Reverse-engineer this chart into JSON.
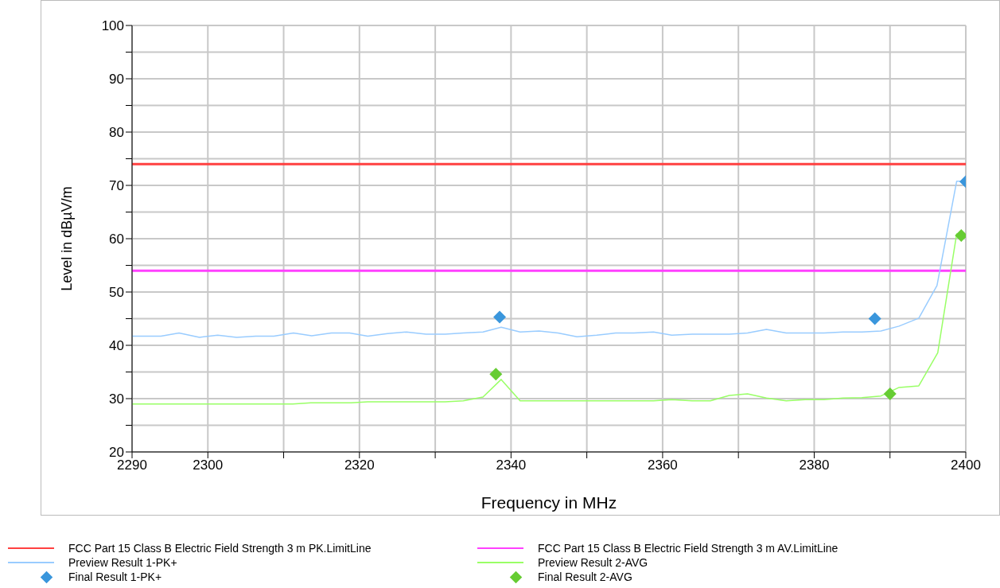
{
  "chart_data": {
    "type": "line",
    "xlabel": "Frequency in MHz",
    "ylabel": "Level in dBµV/m",
    "xlim": [
      2290,
      2400
    ],
    "ylim": [
      20,
      100
    ],
    "xticks": [
      2290,
      2300,
      {
        "value": 2310,
        "label": null
      },
      2320,
      {
        "value": 2330,
        "label": null
      },
      2340,
      {
        "value": 2350,
        "label": null
      },
      2360,
      {
        "value": 2370,
        "label": null
      },
      2380,
      {
        "value": 2390,
        "label": null
      },
      2400
    ],
    "yticks": [
      20,
      {
        "value": 25,
        "label": null
      },
      30,
      {
        "value": 35,
        "label": null
      },
      40,
      {
        "value": 45,
        "label": null
      },
      50,
      {
        "value": 55,
        "label": null
      },
      60,
      {
        "value": 65,
        "label": null
      },
      70,
      {
        "value": 75,
        "label": null
      },
      80,
      {
        "value": 85,
        "label": null
      },
      90,
      {
        "value": 95,
        "label": null
      },
      100
    ],
    "grid": true,
    "legend": "bottom",
    "ref_lines": [
      {
        "axis": "y",
        "value": 74,
        "label": "FCC Part 15 Class B Electric Field Strength 3 m PK.LimitLine",
        "color": "#ff4040"
      },
      {
        "axis": "y",
        "value": 54,
        "label": "FCC Part 15 Class B Electric Field Strength 3 m AV.LimitLine",
        "color": "#ff40ff"
      }
    ],
    "series": [
      {
        "name": "Preview Result 1-PK+",
        "marker": "none",
        "color": "#99ccff",
        "x": [
          2290,
          2293.8,
          2296.2,
          2298.9,
          2301.3,
          2303.8,
          2306.3,
          2308.7,
          2311.3,
          2313.7,
          2316.3,
          2318.7,
          2321.1,
          2323.7,
          2326.2,
          2328.8,
          2331.3,
          2333.7,
          2336.3,
          2338.7,
          2341.2,
          2343.7,
          2346.2,
          2348.7,
          2351.3,
          2353.8,
          2356.2,
          2358.8,
          2361.2,
          2363.9,
          2366.3,
          2368.8,
          2371.2,
          2373.7,
          2376.3,
          2378.8,
          2381.3,
          2383.8,
          2386.3,
          2388.8,
          2391.2,
          2393.8,
          2396.2,
          2398.8,
          2399.5
        ],
        "values": [
          41.7,
          41.7,
          42.3,
          41.5,
          41.9,
          41.5,
          41.7,
          41.7,
          42.3,
          41.8,
          42.3,
          42.3,
          41.7,
          42.2,
          42.5,
          42.1,
          42.1,
          42.3,
          42.5,
          43.4,
          42.5,
          42.7,
          42.3,
          41.6,
          41.9,
          42.3,
          42.3,
          42.5,
          41.9,
          42.1,
          42.1,
          42.1,
          42.3,
          43.0,
          42.3,
          42.3,
          42.3,
          42.5,
          42.5,
          42.7,
          43.6,
          45.1,
          51.2,
          70.8,
          70.8
        ]
      },
      {
        "name": "Preview Result 2-AVG",
        "marker": "none",
        "color": "#99ff66",
        "x": [
          2290,
          2311.2,
          2313.6,
          2318.9,
          2321.1,
          2331.3,
          2333.7,
          2336.3,
          2338.7,
          2341.2,
          2358.8,
          2361.2,
          2363.9,
          2366.3,
          2368.8,
          2371.2,
          2373.7,
          2376.3,
          2378.8,
          2381.3,
          2383.8,
          2386.3,
          2388.8,
          2391.2,
          2393.8,
          2396.3,
          2398.8,
          2399.5
        ],
        "values": [
          29.0,
          29.0,
          29.2,
          29.2,
          29.4,
          29.4,
          29.6,
          30.3,
          33.6,
          29.6,
          29.6,
          29.8,
          29.6,
          29.6,
          30.6,
          30.9,
          30.1,
          29.6,
          29.8,
          29.8,
          30.1,
          30.2,
          30.5,
          32.1,
          32.4,
          38.6,
          60.9,
          60.6
        ]
      },
      {
        "name": "Final Result 1-PK+",
        "type": "scatter",
        "marker": "diamond",
        "color": "#3a96dc",
        "x": [
          2338.5,
          2388.0,
          2400.0
        ],
        "values": [
          45.3,
          45.0,
          70.7
        ]
      },
      {
        "name": "Final Result 2-AVG",
        "type": "scatter",
        "marker": "diamond",
        "color": "#66cc33",
        "x": [
          2338.0,
          2390.0,
          2399.4
        ],
        "values": [
          34.6,
          30.9,
          60.6
        ]
      }
    ]
  }
}
